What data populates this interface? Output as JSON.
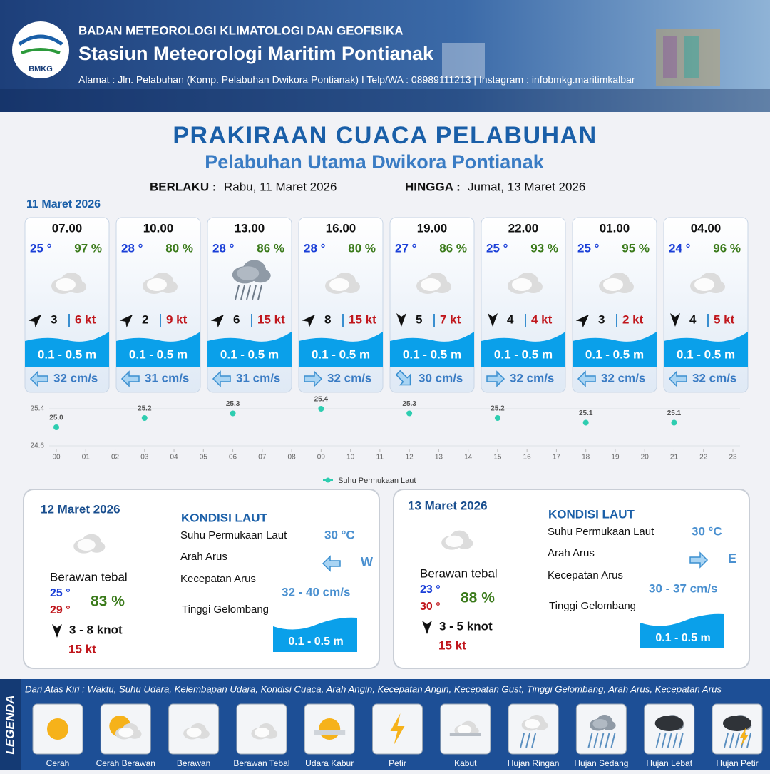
{
  "header": {
    "logo": "BMKG",
    "agency": "BADAN METEOROLOGI KLIMATOLOGI DAN GEOFISIKA",
    "station": "Stasiun Meteorologi Maritim Pontianak",
    "address": "Alamat : Jln. Pelabuhan (Komp. Pelabuhan Dwikora Pontianak) I Telp/WA : 08989111213 | Instagram : infobmkg.maritimkalbar"
  },
  "title": "PRAKIRAAN CUACA PELABUHAN",
  "subtitle": "Pelabuhan Utama Dwikora Pontianak",
  "validity": {
    "from_label": "BERLAKU :",
    "from": "Rabu, 11 Maret 2026",
    "to_label": "HINGGA :",
    "to": "Jumat, 13 Maret 2026"
  },
  "day1": {
    "date": "11 Maret 2026",
    "slots": [
      {
        "time": "07.00",
        "temp": "25 °",
        "humidity": "97 %",
        "wind": 3,
        "gust": "6 kt",
        "wave": "0.1 - 0.5 m",
        "current": "32 cm/s"
      },
      {
        "time": "10.00",
        "temp": "28 °",
        "humidity": "80 %",
        "wind": 2,
        "gust": "9 kt",
        "wave": "0.1 - 0.5 m",
        "current": "31 cm/s"
      },
      {
        "time": "13.00",
        "temp": "28 °",
        "humidity": "86 %",
        "wind": 6,
        "gust": "15 kt",
        "wave": "0.1 - 0.5 m",
        "current": "31 cm/s"
      },
      {
        "time": "16.00",
        "temp": "28 °",
        "humidity": "80 %",
        "wind": 8,
        "gust": "15 kt",
        "wave": "0.1 - 0.5 m",
        "current": "32 cm/s"
      },
      {
        "time": "19.00",
        "temp": "27 °",
        "humidity": "86 %",
        "wind": 5,
        "gust": "7 kt",
        "wave": "0.1 - 0.5 m",
        "current": "30 cm/s"
      },
      {
        "time": "22.00",
        "temp": "25 °",
        "humidity": "93 %",
        "wind": 4,
        "gust": "4 kt",
        "wave": "0.1 - 0.5 m",
        "current": "32 cm/s"
      },
      {
        "time": "01.00",
        "temp": "25 °",
        "humidity": "95 %",
        "wind": 3,
        "gust": "2 kt",
        "wave": "0.1 - 0.5 m",
        "current": "32 cm/s"
      },
      {
        "time": "04.00",
        "temp": "24 °",
        "humidity": "96 %",
        "wind": 4,
        "gust": "5 kt",
        "wave": "0.1 - 0.5 m",
        "current": "32 cm/s"
      }
    ]
  },
  "chart_data": {
    "type": "scatter",
    "series_name": "Suhu Permukaan Laut",
    "color": "#2ecdb0",
    "x": [
      0,
      3,
      6,
      9,
      12,
      15,
      18,
      21
    ],
    "values": [
      25.0,
      25.2,
      25.3,
      25.4,
      25.3,
      25.2,
      25.1,
      25.1
    ],
    "value_labels": [
      "25.0",
      "25.2",
      "25.3",
      "25.4",
      "25.3",
      "25.2",
      "25.1",
      "25.1"
    ],
    "xlim": [
      0,
      23
    ],
    "ylim": [
      24.6,
      25.4
    ],
    "yticks": [
      24.6,
      25.4
    ],
    "xticks": [
      {
        "value": 0,
        "label": "00"
      },
      {
        "value": 1,
        "label": "01"
      },
      {
        "value": 2,
        "label": "02"
      },
      {
        "value": 3,
        "label": "03"
      },
      {
        "value": 4,
        "label": "04"
      },
      {
        "value": 5,
        "label": "05"
      },
      {
        "value": 6,
        "label": "06"
      },
      {
        "value": 7,
        "label": "07"
      },
      {
        "value": 8,
        "label": "08"
      },
      {
        "value": 9,
        "label": "09"
      },
      10,
      11,
      12,
      13,
      14,
      15,
      16,
      17,
      18,
      19,
      20,
      21,
      22,
      23
    ]
  },
  "days": [
    {
      "date": "12 Maret 2026",
      "weather": "Berawan tebal",
      "temp_min": "25 °",
      "temp_max": "29 °",
      "humidity": "83 %",
      "wind": "3  - 8 knot",
      "gust": "15 kt",
      "section_title": "KONDISI LAUT",
      "sst_label": "Suhu Permukaan Laut",
      "sst": "30 °C",
      "current_dir_label": "Arah Arus",
      "current_dir": "W",
      "current_speed_label": "Kecepatan Arus",
      "current_speed": "32 - 40 cm/s",
      "wave_label": "Tinggi Gelombang",
      "wave": "0.1 - 0.5 m"
    },
    {
      "date": "13 Maret 2026",
      "weather": "Berawan tebal",
      "temp_min": "23 °",
      "temp_max": "30 °",
      "humidity": "88 %",
      "wind": "3 - 5 knot",
      "gust": "15 kt",
      "section_title": "KONDISI LAUT",
      "sst_label": "Suhu Permukaan Laut",
      "sst": "30 °C",
      "current_dir_label": "Arah Arus",
      "current_dir": "E",
      "current_speed_label": "Kecepatan Arus",
      "current_speed": "30 - 37 cm/s",
      "wave_label": "Tinggi Gelombang",
      "wave": "0.1 - 0.5 m"
    }
  ],
  "legend": {
    "title": "LEGENDA",
    "description": "Dari Atas Kiri : Waktu, Suhu Udara, Kelembapan Udara, Kondisi Cuaca, Arah Angin, Kecepatan Angin, Kecepatan Gust, Tinggi Gelombang, Arah Arus, Kecepatan Arus",
    "items": [
      "Cerah",
      "Cerah Berawan",
      "Berawan",
      "Berawan Tebal",
      "Udara Kabur",
      "Petir",
      "Kabut",
      "Hujan Ringan",
      "Hujan Sedang",
      "Hujan Lebat",
      "Hujan Petir"
    ]
  }
}
